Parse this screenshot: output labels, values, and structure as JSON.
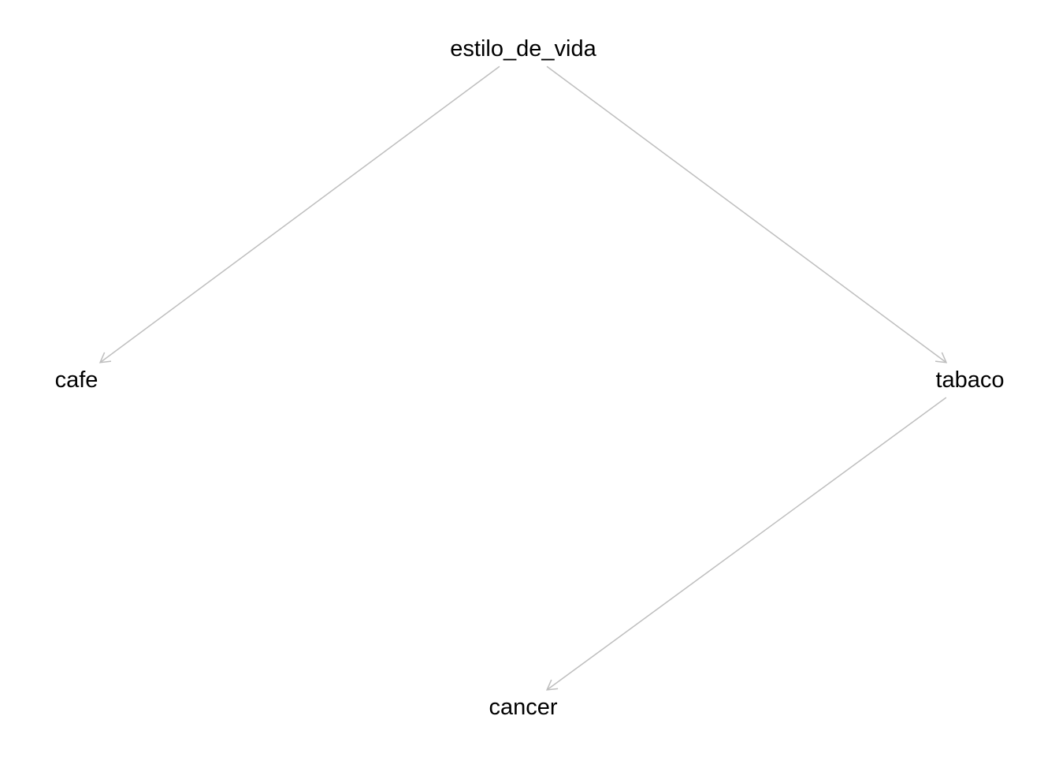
{
  "diagram": {
    "type": "directed-acyclic-graph",
    "edge_color": "#bebebe",
    "text_color": "#000000",
    "background": "#ffffff",
    "nodes": [
      {
        "id": "estilo_de_vida",
        "label": "estilo_de_vida"
      },
      {
        "id": "cafe",
        "label": "cafe"
      },
      {
        "id": "tabaco",
        "label": "tabaco"
      },
      {
        "id": "cancer",
        "label": "cancer"
      }
    ],
    "edges": [
      {
        "from": "estilo_de_vida",
        "to": "cafe"
      },
      {
        "from": "estilo_de_vida",
        "to": "tabaco"
      },
      {
        "from": "tabaco",
        "to": "cancer"
      }
    ]
  }
}
